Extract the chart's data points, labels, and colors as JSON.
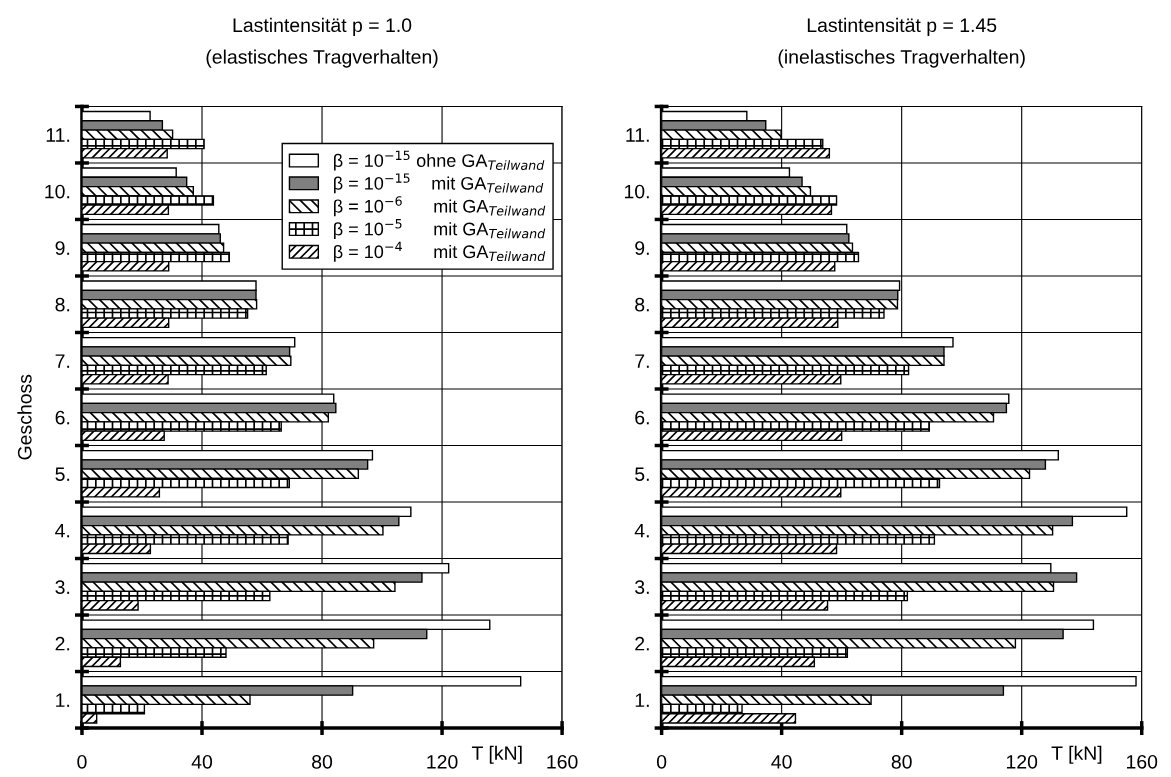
{
  "chart_data": [
    {
      "type": "bar",
      "orientation": "horizontal",
      "title": "Lastintensität p = 1.0",
      "subtitle": "(elastisches Tragverhalten)",
      "xlabel": "T [kN]",
      "ylabel": "Geschoss",
      "categories": [
        "11.",
        "10.",
        "9.",
        "8.",
        "7.",
        "6.",
        "5.",
        "4.",
        "3.",
        "2.",
        "1."
      ],
      "series": [
        {
          "name": "β = 10$^{−15}$ ohne GA$_{Teilwand}$",
          "color": "#ffffff",
          "values": [
            22.7,
            31.4,
            45.6,
            58,
            70.9,
            83.9,
            96.8,
            109.6,
            122.2,
            135.9,
            146.2
          ]
        },
        {
          "name": "β = 10$^{−15}$    mit GA$_{Teilwand}$",
          "color": "#808080",
          "values": [
            26.8,
            34.9,
            46.1,
            58,
            69.2,
            84.6,
            95.2,
            105.6,
            113.3,
            114.9,
            90.2
          ]
        },
        {
          "name": "β = 10$^{−6}$      mit GA$_{Teilwand}$",
          "color": "#000000",
          "values": [
            30.2,
            37.1,
            47.2,
            58.2,
            69.6,
            82.1,
            92.1,
            100.3,
            104.3,
            97.2,
            56
          ]
        },
        {
          "name": "β = 10$^{−5}$      mit GA$_{Teilwand}$",
          "color": "#000000",
          "values": [
            40.7,
            43.8,
            49.1,
            55.2,
            61.4,
            66.4,
            69.1,
            68.7,
            62.6,
            48,
            20.8
          ]
        },
        {
          "name": "β = 10$^{−4}$      mit GA$_{Teilwand}$",
          "color": "#000000",
          "values": [
            28.4,
            28.8,
            28.9,
            28.9,
            28.7,
            27.4,
            25.8,
            22.8,
            18.7,
            12.8,
            4.9
          ]
        }
      ],
      "xlim": [
        0,
        160
      ],
      "xticks": [
        0,
        40,
        80,
        120,
        160
      ],
      "grid": true,
      "legend": "top right"
    },
    {
      "type": "bar",
      "orientation": "horizontal",
      "title": "Lastintensität p = 1.45",
      "subtitle": "(inelastisches Tragverhalten)",
      "xlabel": "T [kN]",
      "categories": [
        "11.",
        "10.",
        "9.",
        "8.",
        "7.",
        "6.",
        "5.",
        "4.",
        "3.",
        "2.",
        "1."
      ],
      "series": [
        {
          "color": "#ffffff",
          "values": [
            28.4,
            42.6,
            61.7,
            79.3,
            97.1,
            115.7,
            132.2,
            155,
            129.7,
            143.9,
            158.1
          ]
        },
        {
          "color": "#808080",
          "values": [
            34.7,
            46.8,
            62.4,
            78.7,
            94.1,
            114.9,
            127.9,
            136.9,
            138.3,
            133.8,
            113.9
          ]
        },
        {
          "color": "#000000",
          "values": [
            39.8,
            49.6,
            63.6,
            78.6,
            94.1,
            110.6,
            122.6,
            130.3,
            130.6,
            117.9,
            69.8
          ]
        },
        {
          "color": "#000000",
          "values": [
            53.7,
            58.3,
            65.6,
            74.1,
            82.3,
            89.2,
            92.6,
            90.9,
            81.9,
            61.9,
            26.8
          ]
        },
        {
          "color": "#000000",
          "values": [
            55.9,
            56.6,
            57.7,
            58.7,
            59.7,
            60,
            59.7,
            58.3,
            55.3,
            50.9,
            44.6
          ]
        }
      ],
      "xlim": [
        0,
        160
      ],
      "xticks": [
        0,
        40,
        80,
        120,
        160
      ],
      "grid": true,
      "legend": false
    }
  ]
}
